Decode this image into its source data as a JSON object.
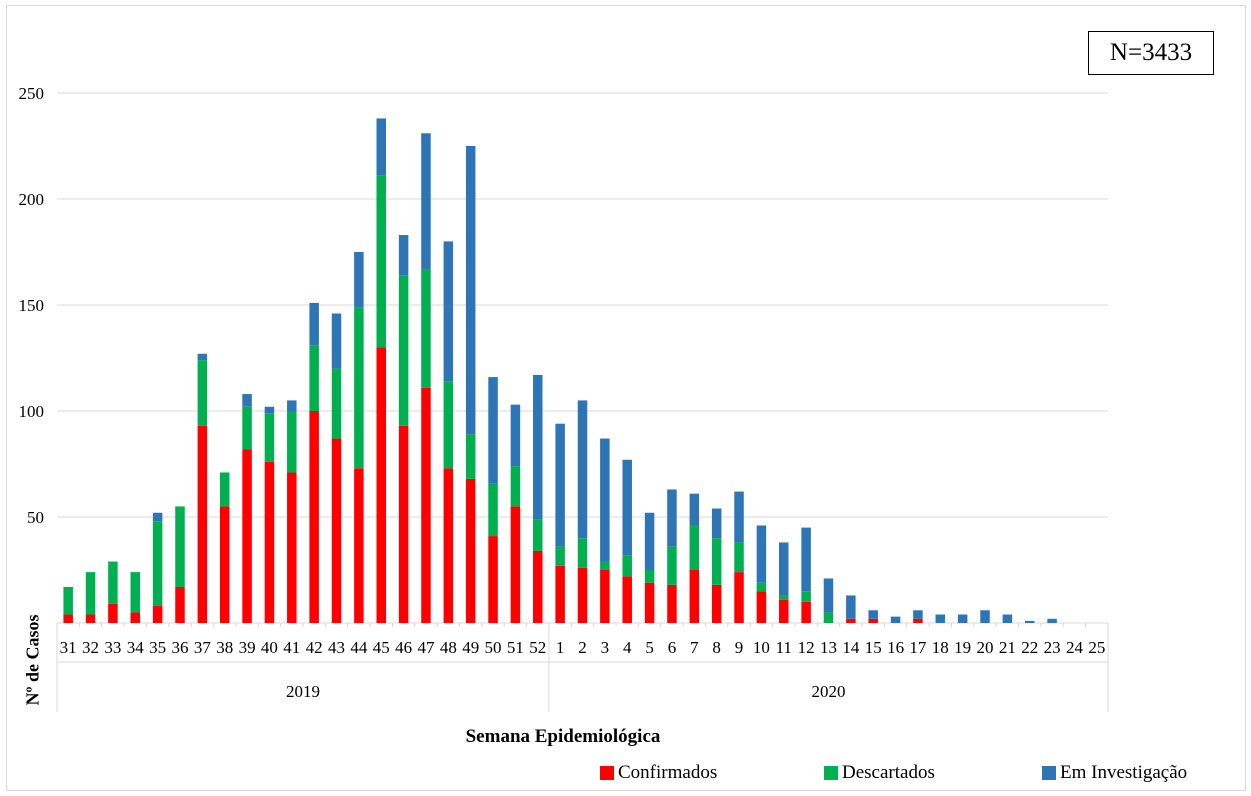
{
  "annotation": "N=3433",
  "colors": {
    "confirmados": "#ff0000",
    "descartados": "#00b050",
    "investigacao": "#2e75b6",
    "grid": "#d9d9d9"
  },
  "chart_data": {
    "type": "bar",
    "stacked": true,
    "title": "",
    "xlabel": "Semana Epidemiológica",
    "ylabel": "Nº de Casos",
    "ylim": [
      0,
      250
    ],
    "yticks": [
      50,
      100,
      150,
      200,
      250
    ],
    "grid": true,
    "legend_position": "bottom-right",
    "categories": [
      "31",
      "32",
      "33",
      "34",
      "35",
      "36",
      "37",
      "38",
      "39",
      "40",
      "41",
      "42",
      "43",
      "44",
      "45",
      "46",
      "47",
      "48",
      "49",
      "50",
      "51",
      "52",
      "1",
      "2",
      "3",
      "4",
      "5",
      "6",
      "7",
      "8",
      "9",
      "10",
      "11",
      "12",
      "13",
      "14",
      "15",
      "16",
      "17",
      "18",
      "19",
      "20",
      "21",
      "22",
      "23",
      "24",
      "25"
    ],
    "groups": [
      {
        "label": "2019",
        "count": 22
      },
      {
        "label": "2020",
        "count": 25
      }
    ],
    "series": [
      {
        "name": "Confirmados",
        "values": [
          4,
          4,
          9,
          5,
          8,
          17,
          93,
          55,
          82,
          76,
          71,
          100,
          87,
          73,
          130,
          93,
          111,
          73,
          68,
          41,
          55,
          34,
          27,
          26,
          25,
          22,
          19,
          18,
          25,
          18,
          24,
          15,
          11,
          10,
          0,
          2,
          2,
          0,
          2,
          0,
          0,
          0,
          0,
          0,
          0,
          0,
          0
        ]
      },
      {
        "name": "Descartados",
        "values": [
          13,
          20,
          20,
          19,
          40,
          38,
          31,
          16,
          20,
          23,
          29,
          31,
          33,
          76,
          81,
          71,
          56,
          41,
          21,
          25,
          19,
          15,
          9,
          14,
          4,
          10,
          6,
          18,
          21,
          22,
          14,
          4,
          2,
          5,
          5,
          0,
          0,
          0,
          0,
          0,
          0,
          0,
          0,
          0,
          0,
          0,
          0
        ]
      },
      {
        "name": "Em Investigação",
        "values": [
          0,
          0,
          0,
          0,
          4,
          0,
          3,
          0,
          6,
          3,
          5,
          20,
          26,
          26,
          27,
          19,
          64,
          66,
          136,
          50,
          29,
          68,
          58,
          65,
          58,
          45,
          27,
          27,
          15,
          14,
          24,
          27,
          25,
          30,
          16,
          11,
          4,
          3,
          4,
          4,
          4,
          6,
          4,
          1,
          2,
          0,
          0
        ]
      }
    ]
  }
}
